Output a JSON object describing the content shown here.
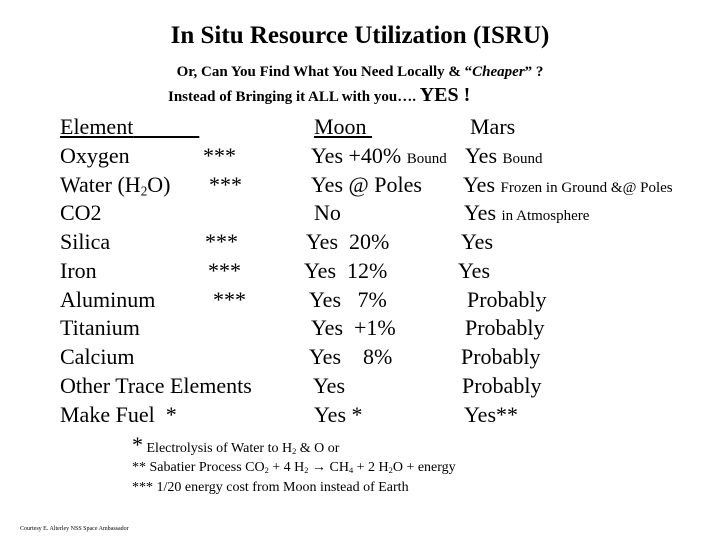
{
  "title": "In Situ Resource Utilization (ISRU)",
  "subtitle_line1_a": "Or, Can You Find What You Need Locally & “",
  "subtitle_line1_b": "Cheaper",
  "subtitle_line1_c": "” ?",
  "subtitle_line2": "Instead of Bringing it ALL with you….",
  "subtitle_yes": "YES !",
  "table": {
    "headers": {
      "element": "Element",
      "moon": "Moon",
      "mars": "Mars"
    },
    "rows": [
      {
        "element": "Oxygen",
        "stars": "***",
        "moon": "Yes +40%",
        "moon_note": "Bound",
        "mars": "Yes",
        "mars_note": "Bound"
      },
      {
        "element": "Water (H",
        "element_sub": "2",
        "element_tail": "O)",
        "stars": "***",
        "moon": "Yes @ Poles",
        "mars": "Yes",
        "mars_note": "Frozen in Ground &@ Poles"
      },
      {
        "element": "CO2",
        "moon": "No",
        "mars": "Yes",
        "mars_note": "in Atmosphere"
      },
      {
        "element": "Silica",
        "stars": "***",
        "moon": "Yes  20%",
        "mars": "Yes"
      },
      {
        "element": "Iron",
        "stars": "***",
        "moon": "Yes  12%",
        "mars": "Yes"
      },
      {
        "element": "Aluminum",
        "stars": "***",
        "moon": "Yes   7%",
        "mars": "Probably"
      },
      {
        "element": "Titanium",
        "moon": "Yes  +1%",
        "mars": "Probably"
      },
      {
        "element": "Calcium",
        "moon": "Yes    8%",
        "mars": "Probably"
      },
      {
        "element": "Other Trace Elements",
        "moon": "Yes",
        "mars": "Probably"
      },
      {
        "element": "Make Fuel  *",
        "moon": "Yes *",
        "mars": "Yes**"
      }
    ]
  },
  "footnotes": {
    "f1_star": "*",
    "f1_a": "Electrolysis of Water to H",
    "f1_sub": "2",
    "f1_b": "& O  or",
    "f2_a": "** Sabatier Process  CO",
    "f2_sub1": "2",
    "f2_b": "+ 4 H",
    "f2_sub2": "2",
    "f2_c": "→ CH",
    "f2_sub3": "4",
    "f2_d": "+ 2 H",
    "f2_sub4": "2",
    "f2_e": "O + energy",
    "f3": "*** 1/20 energy cost from Moon instead of Earth"
  },
  "courtesy": "Courtesy E. Alterley NSS Space Ambassador"
}
